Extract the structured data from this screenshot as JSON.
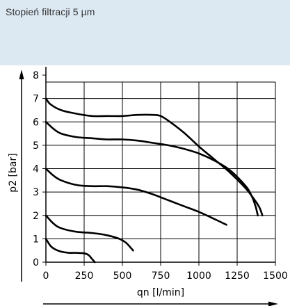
{
  "header": {
    "title": "Stopień filtracji 5 µm",
    "background": "#dce9f3"
  },
  "chart_data": {
    "type": "line",
    "title": "",
    "xlabel": "qn [l/min]",
    "ylabel": "p2 [bar]",
    "xlim": [
      0,
      1500
    ],
    "ylim": [
      0,
      8
    ],
    "xticks": [
      "0",
      "250",
      "500",
      "750",
      "1000",
      "1250",
      "1500"
    ],
    "yticks": [
      "0",
      "1",
      "2",
      "3",
      "4",
      "5",
      "6",
      "7",
      "8"
    ],
    "grid": true,
    "line_color": "#000000",
    "series": [
      {
        "x": [
          0,
          30,
          100,
          200,
          300,
          400,
          500,
          600,
          700,
          750,
          800,
          900,
          1000,
          1100,
          1200,
          1300,
          1360,
          1395,
          1410,
          1415
        ],
        "y": [
          7.0,
          6.75,
          6.5,
          6.35,
          6.25,
          6.25,
          6.25,
          6.3,
          6.3,
          6.25,
          6.05,
          5.55,
          4.95,
          4.4,
          3.85,
          3.2,
          2.7,
          2.35,
          2.1,
          2.0
        ]
      },
      {
        "x": [
          0,
          50,
          100,
          200,
          300,
          400,
          500,
          600,
          700,
          800,
          900,
          1000,
          1100,
          1200,
          1300,
          1340,
          1370,
          1385
        ],
        "y": [
          6.0,
          5.7,
          5.5,
          5.35,
          5.3,
          5.25,
          5.25,
          5.2,
          5.1,
          5.0,
          4.85,
          4.65,
          4.35,
          3.95,
          3.3,
          2.9,
          2.4,
          2.0
        ]
      },
      {
        "x": [
          0,
          50,
          100,
          200,
          300,
          400,
          500,
          600,
          700,
          800,
          900,
          1000,
          1100,
          1180
        ],
        "y": [
          4.0,
          3.7,
          3.5,
          3.3,
          3.25,
          3.25,
          3.2,
          3.1,
          2.9,
          2.65,
          2.4,
          2.15,
          1.85,
          1.6
        ]
      },
      {
        "x": [
          0,
          50,
          100,
          200,
          300,
          400,
          480,
          520,
          550,
          570
        ],
        "y": [
          2.0,
          1.65,
          1.45,
          1.3,
          1.25,
          1.15,
          1.0,
          0.85,
          0.65,
          0.5
        ]
      },
      {
        "x": [
          0,
          30,
          60,
          100,
          150,
          200,
          250,
          280,
          300,
          320
        ],
        "y": [
          1.0,
          0.7,
          0.55,
          0.45,
          0.4,
          0.4,
          0.38,
          0.3,
          0.15,
          0.0
        ]
      }
    ]
  }
}
